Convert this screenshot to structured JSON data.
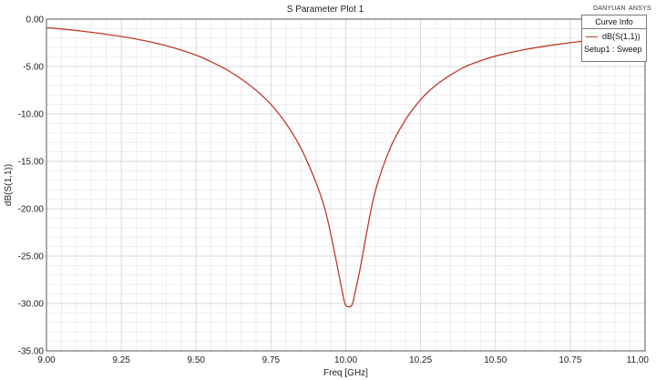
{
  "header": {
    "brand_left": "DANYUAN",
    "brand_right": "ANSYS"
  },
  "legend": {
    "title": "Curve Info",
    "series_label": "dB(S(1,1))",
    "setup_label": "Setup1 : Sweep"
  },
  "chart_data": {
    "type": "line",
    "title": "S Parameter Plot 1",
    "xlabel": "Freq [GHz]",
    "ylabel": "dB(S(1,1))",
    "xlim": [
      9.0,
      11.0
    ],
    "ylim": [
      -35.0,
      0.0
    ],
    "x_ticks": [
      "9.00",
      "9.25",
      "9.50",
      "9.75",
      "10.00",
      "10.25",
      "10.50",
      "10.75",
      "11.00"
    ],
    "y_ticks": [
      "0.00",
      "-5.00",
      "-10.00",
      "-15.00",
      "-20.00",
      "-25.00",
      "-30.00",
      "-35.00"
    ],
    "grid": true,
    "legend_position": "top-right",
    "series": [
      {
        "name": "dB(S(1,1))",
        "color": "#c0392b",
        "x": [
          9.0,
          9.1,
          9.2,
          9.3,
          9.4,
          9.5,
          9.55,
          9.6,
          9.65,
          9.7,
          9.75,
          9.8,
          9.85,
          9.9,
          9.93,
          9.95,
          9.97,
          9.99,
          10.0,
          10.02,
          10.03,
          10.05,
          10.07,
          10.1,
          10.15,
          10.2,
          10.25,
          10.3,
          10.35,
          10.4,
          10.45,
          10.5,
          10.6,
          10.7,
          10.8,
          10.9,
          11.0
        ],
        "y": [
          -0.9,
          -1.2,
          -1.6,
          -2.1,
          -2.8,
          -3.8,
          -4.5,
          -5.3,
          -6.3,
          -7.5,
          -9.0,
          -11.0,
          -13.6,
          -17.2,
          -20.0,
          -22.7,
          -25.8,
          -29.0,
          -30.2,
          -30.2,
          -29.0,
          -26.0,
          -22.5,
          -18.0,
          -13.5,
          -10.6,
          -8.5,
          -7.0,
          -5.9,
          -5.0,
          -4.4,
          -3.9,
          -3.2,
          -2.7,
          -2.3,
          -2.0,
          -1.7
        ]
      }
    ]
  }
}
